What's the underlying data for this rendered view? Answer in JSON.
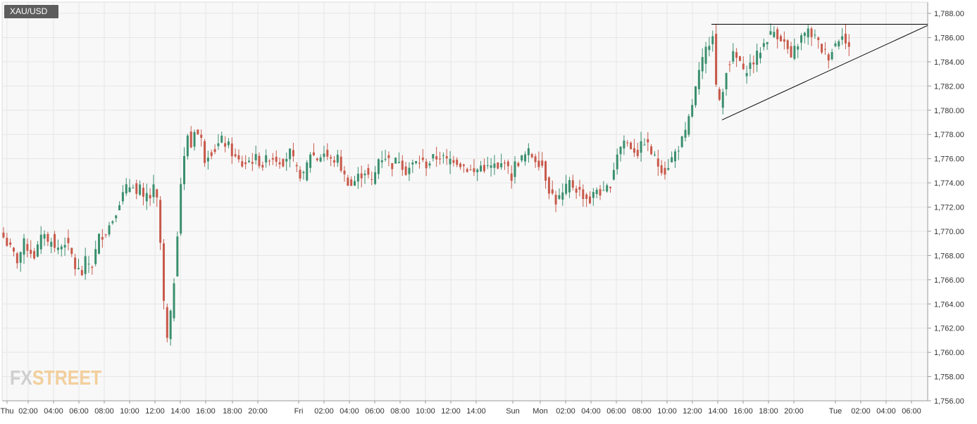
{
  "symbol": "XAU/USD",
  "logo": {
    "part1": "FX",
    "part2": "STREET"
  },
  "colors": {
    "up": "#3a8f6e",
    "down": "#c8594a",
    "grid": "#e6e6e6",
    "axis": "#9a9a9a",
    "bg": "#f8f8f8",
    "trendline": "#000000"
  },
  "chart_data": {
    "type": "candlestick",
    "title": "XAU/USD",
    "ylim": [
      1756,
      1788
    ],
    "y_ticks": [
      "1,756.00",
      "1,758.00",
      "1,760.00",
      "1,762.00",
      "1,764.00",
      "1,766.00",
      "1,768.00",
      "1,770.00",
      "1,772.00",
      "1,774.00",
      "1,776.00",
      "1,778.00",
      "1,780.00",
      "1,782.00",
      "1,784.00",
      "1,786.00",
      "1,788.00"
    ],
    "x_labels": [
      "Thu",
      "02:00",
      "04:00",
      "06:00",
      "08:00",
      "10:00",
      "12:00",
      "14:00",
      "16:00",
      "18:00",
      "20:00",
      "Fri",
      "02:00",
      "04:00",
      "06:00",
      "08:00",
      "10:00",
      "12:00",
      "14:00",
      "Sun",
      "Mon",
      "02:00",
      "04:00",
      "06:00",
      "08:00",
      "10:00",
      "12:00",
      "14:00",
      "16:00",
      "18:00",
      "20:00",
      "Tue",
      "02:00",
      "04:00",
      "06:00"
    ],
    "day_separators": [
      "Thu",
      "Fri",
      "Sun",
      "Mon",
      "Tue"
    ],
    "grid": true,
    "candle_interval": "15 min",
    "path": [
      [
        0,
        1769.5
      ],
      [
        4,
        1767.6
      ],
      [
        6,
        1769.0
      ],
      [
        9,
        1768.0
      ],
      [
        12,
        1770.0
      ],
      [
        13,
        1769.0
      ],
      [
        14,
        1769.5
      ],
      [
        15,
        1768.5
      ],
      [
        17,
        1768.8
      ],
      [
        18,
        1769.2
      ],
      [
        20,
        1768.0
      ],
      [
        21,
        1767.0
      ],
      [
        23,
        1766.5
      ],
      [
        24,
        1767.5
      ],
      [
        26,
        1767.2
      ],
      [
        28,
        1769.5
      ],
      [
        30,
        1770.0
      ],
      [
        32,
        1771.0
      ],
      [
        34,
        1772.5
      ],
      [
        36,
        1773.5
      ],
      [
        38,
        1774.0
      ],
      [
        39,
        1773.0
      ],
      [
        40,
        1773.5
      ],
      [
        41,
        1772.5
      ],
      [
        42,
        1773.0
      ],
      [
        43,
        1772.8
      ],
      [
        44,
        1773.5
      ],
      [
        45,
        1772.5
      ],
      [
        46,
        1769.0
      ],
      [
        47,
        1764.0
      ],
      [
        48,
        1761.0
      ],
      [
        49,
        1763.0
      ],
      [
        50,
        1766.0
      ],
      [
        51,
        1770.0
      ],
      [
        52,
        1774.0
      ],
      [
        53,
        1776.0
      ],
      [
        54,
        1778.0
      ],
      [
        55,
        1777.0
      ],
      [
        56,
        1778.5
      ],
      [
        57,
        1778.0
      ],
      [
        58,
        1777.5
      ],
      [
        59,
        1776.0
      ],
      [
        60,
        1776.5
      ],
      [
        62,
        1776.8
      ],
      [
        64,
        1777.5
      ],
      [
        66,
        1777.0
      ],
      [
        67,
        1776.5
      ],
      [
        68,
        1776.0
      ],
      [
        70,
        1775.5
      ],
      [
        72,
        1775.8
      ],
      [
        74,
        1776.0
      ],
      [
        76,
        1775.5
      ],
      [
        78,
        1776.2
      ],
      [
        80,
        1776.0
      ],
      [
        82,
        1775.8
      ],
      [
        84,
        1776.5
      ],
      [
        86,
        1775.0
      ],
      [
        88,
        1774.5
      ],
      [
        89,
        1775.5
      ],
      [
        90,
        1776.5
      ],
      [
        92,
        1776.0
      ],
      [
        94,
        1776.5
      ],
      [
        96,
        1775.8
      ],
      [
        98,
        1776.0
      ],
      [
        100,
        1774.5
      ],
      [
        102,
        1773.8
      ],
      [
        104,
        1774.5
      ],
      [
        106,
        1775.0
      ],
      [
        108,
        1774.0
      ],
      [
        109,
        1774.8
      ],
      [
        110,
        1776.0
      ],
      [
        112,
        1776.2
      ],
      [
        114,
        1775.5
      ],
      [
        116,
        1776.0
      ],
      [
        118,
        1775.0
      ],
      [
        120,
        1775.5
      ],
      [
        122,
        1775.8
      ],
      [
        124,
        1775.5
      ],
      [
        126,
        1776.0
      ],
      [
        128,
        1776.2
      ],
      [
        130,
        1775.8
      ],
      [
        132,
        1776.0
      ],
      [
        134,
        1775.6
      ],
      [
        136,
        1775.2
      ],
      [
        138,
        1774.8
      ],
      [
        140,
        1775.4
      ],
      [
        142,
        1775.2
      ],
      [
        144,
        1775.4
      ],
      [
        145,
        1775.0
      ],
      [
        146,
        1775.5
      ],
      [
        147,
        1776.0
      ],
      [
        148,
        1775.0
      ],
      [
        149,
        1774.5
      ],
      [
        150,
        1775.5
      ],
      [
        152,
        1776.0
      ],
      [
        154,
        1776.5
      ],
      [
        156,
        1776.0
      ],
      [
        158,
        1775.5
      ],
      [
        160,
        1773.5
      ],
      [
        162,
        1772.5
      ],
      [
        164,
        1773.0
      ],
      [
        166,
        1774.0
      ],
      [
        168,
        1773.5
      ],
      [
        170,
        1773.0
      ],
      [
        172,
        1772.5
      ],
      [
        174,
        1773.5
      ],
      [
        176,
        1773.0
      ],
      [
        178,
        1774.0
      ],
      [
        180,
        1776.5
      ],
      [
        182,
        1777.5
      ],
      [
        184,
        1777.0
      ],
      [
        186,
        1776.5
      ],
      [
        188,
        1777.5
      ],
      [
        190,
        1776.5
      ],
      [
        192,
        1775.5
      ],
      [
        194,
        1775.0
      ],
      [
        196,
        1776.0
      ],
      [
        198,
        1777.0
      ],
      [
        200,
        1778.0
      ],
      [
        202,
        1780.5
      ],
      [
        204,
        1783.0
      ],
      [
        206,
        1785.0
      ],
      [
        208,
        1786.5
      ],
      [
        209,
        1782.0
      ],
      [
        210,
        1780.5
      ],
      [
        211,
        1781.5
      ],
      [
        212,
        1783.5
      ],
      [
        214,
        1784.5
      ],
      [
        216,
        1784.0
      ],
      [
        217,
        1783.0
      ],
      [
        218,
        1783.5
      ],
      [
        220,
        1784.0
      ],
      [
        222,
        1785.0
      ],
      [
        224,
        1786.0
      ],
      [
        226,
        1786.5
      ],
      [
        228,
        1786.0
      ],
      [
        230,
        1785.0
      ],
      [
        231,
        1784.0
      ],
      [
        232,
        1785.0
      ],
      [
        234,
        1786.0
      ],
      [
        236,
        1786.5
      ],
      [
        238,
        1786.0
      ],
      [
        240,
        1785.0
      ],
      [
        242,
        1784.5
      ],
      [
        244,
        1785.5
      ],
      [
        246,
        1786.5
      ],
      [
        247,
        1785.5
      ],
      [
        248,
        1785.0
      ]
    ],
    "triangle": {
      "resistance": [
        1787.1,
        1787.1
      ],
      "support_from": 1779.2,
      "support_to": 1787.0
    }
  }
}
